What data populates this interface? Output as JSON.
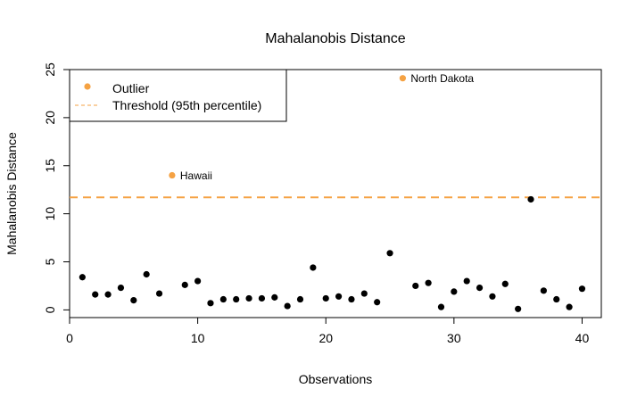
{
  "colors": {
    "normal_point": "#000000",
    "outlier_point": "#F5A243",
    "threshold_line": "#F5A243",
    "frame": "#000000",
    "background": "#FFFFFF"
  },
  "chart_data": {
    "type": "scatter",
    "title": "Mahalanobis Distance",
    "xlabel": "Observations",
    "ylabel": "Mahalanobis Distance",
    "xlim": [
      0,
      41.5
    ],
    "ylim": [
      -0.8,
      25
    ],
    "x_ticks": [
      0,
      10,
      20,
      30,
      40
    ],
    "y_ticks": [
      0,
      5,
      10,
      15,
      20,
      25
    ],
    "grid": false,
    "legend": {
      "position": "top-left",
      "entries": [
        {
          "label": "Outlier",
          "type": "point"
        },
        {
          "label": "Threshold (95th percentile)",
          "type": "dashed-line"
        }
      ]
    },
    "threshold": 11.7,
    "series": [
      {
        "role": "normal",
        "x": [
          1,
          2,
          3,
          4,
          5,
          6,
          7,
          9,
          10,
          11,
          12,
          13,
          14,
          15,
          16,
          17,
          18,
          19,
          20,
          21,
          22,
          23,
          24,
          25,
          27,
          28,
          29,
          30,
          31,
          32,
          33,
          34,
          35,
          36,
          37,
          38,
          39,
          40
        ],
        "y": [
          3.4,
          1.6,
          1.6,
          2.3,
          1.0,
          3.7,
          1.7,
          2.6,
          3.0,
          0.7,
          1.1,
          1.1,
          1.2,
          1.2,
          1.3,
          0.4,
          1.1,
          4.4,
          1.2,
          1.4,
          1.1,
          1.7,
          0.8,
          5.9,
          2.5,
          2.8,
          0.3,
          1.9,
          3.0,
          2.3,
          1.4,
          2.7,
          0.1,
          11.5,
          2.0,
          1.1,
          0.3,
          2.2
        ]
      },
      {
        "role": "outlier",
        "x": [
          8,
          26
        ],
        "y": [
          14.0,
          24.1
        ],
        "labels": [
          "Hawaii",
          "North Dakota"
        ]
      }
    ]
  }
}
